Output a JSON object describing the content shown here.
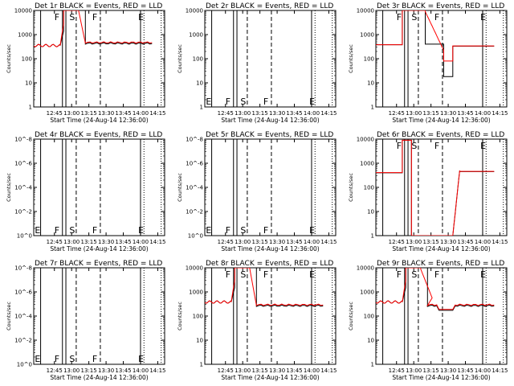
{
  "chart_data": [
    {
      "type": "line",
      "title": "Det 1r BLACK = Events, RED = LLD",
      "empty": false,
      "ylog": "counts",
      "yticks": [
        "1",
        "10",
        "100",
        "1000",
        "10000"
      ],
      "ylim": [
        1,
        10000
      ],
      "shape": "A",
      "markers": [
        "F",
        "S",
        "F",
        "E"
      ]
    },
    {
      "type": "line",
      "title": "Det 2r BLACK = Events, RED = LLD",
      "empty": true,
      "ylog": "counts",
      "yticks": [
        "1",
        "10",
        "100",
        "1000",
        "10000"
      ],
      "ylim": [
        1,
        10000
      ],
      "shape": "none",
      "markers": [
        "E",
        "F",
        "S",
        "F",
        "E"
      ]
    },
    {
      "type": "line",
      "title": "Det 3r BLACK = Events, RED = LLD",
      "empty": false,
      "ylog": "counts",
      "yticks": [
        "1",
        "10",
        "100",
        "1000",
        "10000"
      ],
      "ylim": [
        1,
        10000
      ],
      "shape": "C",
      "markers": [
        "F",
        "S",
        "F",
        "E"
      ]
    },
    {
      "type": "line",
      "title": "Det 4r BLACK = Events, RED = LLD",
      "empty": true,
      "ylog": "sci",
      "yticks": [
        "10^0",
        "10^-2",
        "10^-4",
        "10^-6",
        "10^-8"
      ],
      "ylim": [
        1e-08,
        1
      ],
      "shape": "none",
      "markers": [
        "E",
        "F",
        "S",
        "F",
        "E"
      ]
    },
    {
      "type": "line",
      "title": "Det 5r BLACK = Events, RED = LLD",
      "empty": true,
      "ylog": "sci",
      "yticks": [
        "10^0",
        "10^-2",
        "10^-4",
        "10^-6",
        "10^-8"
      ],
      "ylim": [
        1e-08,
        1
      ],
      "shape": "none",
      "markers": [
        "E",
        "F",
        "S",
        "F",
        "E"
      ]
    },
    {
      "type": "line",
      "title": "Det 6r BLACK = Events, RED = LLD",
      "empty": false,
      "ylog": "counts",
      "yticks": [
        "1",
        "10",
        "100",
        "1000",
        "10000"
      ],
      "ylim": [
        1,
        10000
      ],
      "shape": "F",
      "markers": [
        "F",
        "S",
        "F",
        "E"
      ]
    },
    {
      "type": "line",
      "title": "Det 7r BLACK = Events, RED = LLD",
      "empty": true,
      "ylog": "sci",
      "yticks": [
        "10^0",
        "10^-2",
        "10^-4",
        "10^-6",
        "10^-8"
      ],
      "ylim": [
        1e-08,
        1
      ],
      "shape": "none",
      "markers": [
        "E",
        "F",
        "S",
        "F",
        "E"
      ]
    },
    {
      "type": "line",
      "title": "Det 8r BLACK = Events, RED = LLD",
      "empty": false,
      "ylog": "counts",
      "yticks": [
        "1",
        "10",
        "100",
        "1000",
        "10000"
      ],
      "ylim": [
        1,
        10000
      ],
      "shape": "H",
      "markers": [
        "F",
        "S",
        "F",
        "E"
      ]
    },
    {
      "type": "line",
      "title": "Det 9r BLACK = Events, RED = LLD",
      "empty": false,
      "ylog": "counts",
      "yticks": [
        "1",
        "10",
        "100",
        "1000",
        "10000"
      ],
      "ylim": [
        1,
        10000
      ],
      "shape": "I",
      "markers": [
        "F",
        "S",
        "F",
        "E"
      ]
    }
  ],
  "shared": {
    "xlabel": "Start Time (24-Aug-14 12:36:00)",
    "ylabel": "Counts/sec",
    "xticks": [
      "12:45",
      "13:00",
      "13:15",
      "13:30",
      "13:45",
      "14:00",
      "14:15"
    ],
    "xlim_minutes": [
      -9,
      105
    ],
    "xtick_minutes": [
      9,
      24,
      39,
      54,
      69,
      84,
      99
    ],
    "solid_lines_minutes": [
      -3,
      16,
      19,
      84
    ],
    "dashed_lines_minutes": [
      28,
      49
    ],
    "dotted_lines_minutes": [
      87,
      102
    ],
    "series": [
      {
        "name": "Events",
        "color": "#000000"
      },
      {
        "name": "LLD",
        "color": "#ff0000"
      }
    ]
  }
}
